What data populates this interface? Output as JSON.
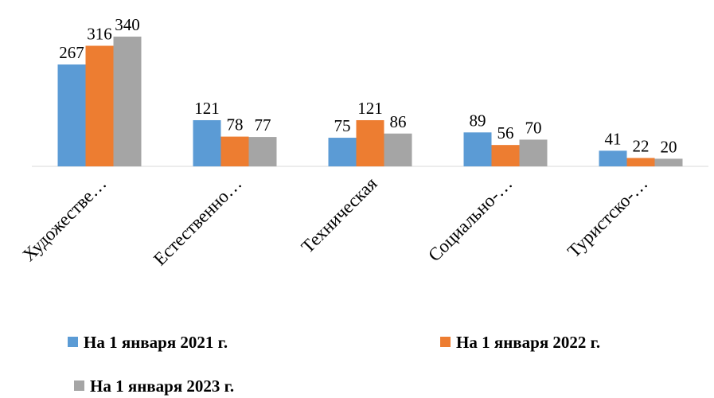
{
  "chart_data": {
    "type": "bar",
    "categories": [
      "Художестве…",
      "Естественно…",
      "Техническая",
      "Социально-…",
      "Туристско-…"
    ],
    "series": [
      {
        "name": "На 1 января 2021 г.",
        "color": "#5b9bd5",
        "values": [
          267,
          121,
          75,
          89,
          41
        ]
      },
      {
        "name": "На 1 января 2022 г.",
        "color": "#ed7d31",
        "values": [
          316,
          78,
          121,
          56,
          22
        ]
      },
      {
        "name": "На 1 января 2023 г.",
        "color": "#a5a5a5",
        "values": [
          340,
          77,
          86,
          70,
          20
        ]
      }
    ]
  }
}
